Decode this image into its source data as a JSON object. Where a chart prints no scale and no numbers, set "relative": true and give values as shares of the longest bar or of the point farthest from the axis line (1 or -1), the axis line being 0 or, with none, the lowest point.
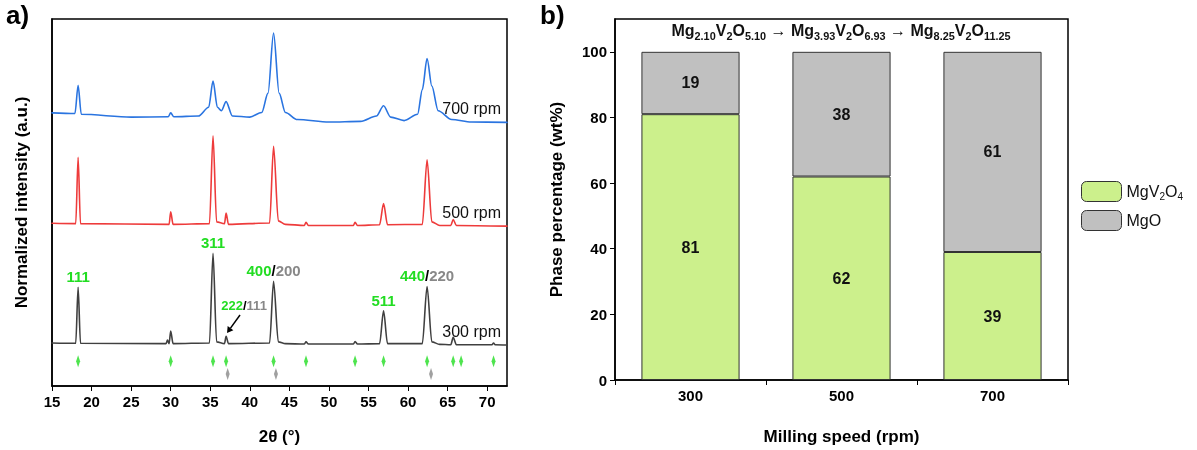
{
  "chart_data": [
    {
      "type": "line",
      "relative": true,
      "xlabel": "2θ (°)",
      "ylabel": "Normalized intensity (a.u.)",
      "xlim": [
        15,
        72.5
      ],
      "xticks": [
        15,
        20,
        25,
        30,
        35,
        40,
        45,
        50,
        55,
        60,
        65,
        70
      ],
      "legend": false,
      "series": [
        {
          "name": "700 rpm",
          "color": "#2a74e0",
          "x": [
            15,
            17.9,
            18.3,
            18.7,
            25,
            29.7,
            30.0,
            30.4,
            33.5,
            34.8,
            35.35,
            35.9,
            36.4,
            37.0,
            37.8,
            40,
            41.5,
            42.3,
            43.0,
            43.7,
            44.5,
            46,
            50,
            54,
            56.0,
            56.9,
            57.8,
            59.5,
            61.2,
            61.8,
            62.4,
            63.0,
            63.8,
            65.5,
            68,
            72.5
          ],
          "values": [
            0.774,
            0.772,
            0.852,
            0.77,
            0.762,
            0.763,
            0.774,
            0.763,
            0.765,
            0.79,
            0.864,
            0.79,
            0.78,
            0.806,
            0.765,
            0.762,
            0.775,
            0.83,
            1.0,
            0.83,
            0.775,
            0.755,
            0.748,
            0.75,
            0.765,
            0.794,
            0.762,
            0.752,
            0.77,
            0.84,
            0.928,
            0.85,
            0.78,
            0.755,
            0.748,
            0.747
          ]
        },
        {
          "name": "500 rpm",
          "color": "#ee3b3b",
          "x": [
            15,
            18.0,
            18.3,
            18.6,
            29.8,
            30.0,
            30.3,
            34.9,
            35.35,
            35.8,
            36.8,
            37.0,
            37.3,
            42.5,
            43.0,
            43.6,
            44.5,
            46.9,
            47.1,
            47.4,
            53.1,
            53.3,
            53.6,
            56.4,
            56.9,
            57.4,
            61.8,
            62.4,
            63.0,
            64.0,
            65.4,
            65.7,
            66.1,
            72.5
          ],
          "values": [
            0.461,
            0.46,
            0.648,
            0.46,
            0.458,
            0.494,
            0.458,
            0.46,
            0.709,
            0.465,
            0.46,
            0.49,
            0.458,
            0.462,
            0.679,
            0.468,
            0.458,
            0.455,
            0.464,
            0.455,
            0.455,
            0.464,
            0.455,
            0.457,
            0.517,
            0.457,
            0.458,
            0.641,
            0.465,
            0.455,
            0.455,
            0.472,
            0.455,
            0.453
          ]
        },
        {
          "name": "300 rpm",
          "color": "#404040",
          "x": [
            15,
            18.0,
            18.3,
            18.6,
            29.4,
            29.6,
            29.8,
            30.0,
            30.3,
            34.9,
            35.35,
            35.8,
            36.8,
            37.0,
            37.3,
            42.5,
            43.0,
            43.6,
            44.5,
            46.9,
            47.1,
            47.4,
            53.1,
            53.3,
            53.6,
            56.4,
            56.9,
            57.4,
            61.8,
            62.4,
            63.0,
            64.0,
            65.4,
            65.7,
            66.1,
            70.6,
            70.8,
            71.0,
            72.5
          ],
          "values": [
            0.122,
            0.121,
            0.28,
            0.121,
            0.12,
            0.13,
            0.12,
            0.156,
            0.12,
            0.122,
            0.376,
            0.125,
            0.12,
            0.141,
            0.12,
            0.122,
            0.297,
            0.125,
            0.12,
            0.119,
            0.125,
            0.119,
            0.119,
            0.126,
            0.119,
            0.12,
            0.213,
            0.12,
            0.12,
            0.282,
            0.125,
            0.118,
            0.117,
            0.138,
            0.117,
            0.117,
            0.122,
            0.117,
            0.116
          ]
        },
        {
          "type": "scatter",
          "marker": "diamond",
          "color": "#22dd22",
          "x": [
            18.3,
            30.0,
            35.35,
            37.0,
            43.0,
            47.1,
            53.3,
            56.9,
            62.4,
            65.7,
            66.7,
            70.8
          ],
          "values": [
            0.07,
            0.07,
            0.07,
            0.07,
            0.07,
            0.07,
            0.07,
            0.07,
            0.07,
            0.07,
            0.07,
            0.07
          ]
        },
        {
          "type": "scatter",
          "marker": "diamond",
          "color": "#888888",
          "x": [
            37.2,
            43.3,
            62.9
          ],
          "values": [
            0.034,
            0.034,
            0.034
          ]
        }
      ],
      "annotations": [
        "a)",
        {
          "text": "111",
          "x": 18.3,
          "y": 0.28
        },
        {
          "text": "311",
          "x": 35.35,
          "y": 0.376
        },
        {
          "text": "222/111",
          "x": 37.0,
          "y": 0.141
        },
        {
          "text": "400/200",
          "x": 43.0,
          "y": 0.297
        },
        {
          "text": "511",
          "x": 56.9,
          "y": 0.213
        },
        {
          "text": "440/220",
          "x": 62.4,
          "y": 0.282
        }
      ]
    },
    {
      "type": "bar",
      "stacked": true,
      "title": "Mg$_{2.10}$V$_{2}$O$_{5.10}$ → Mg$_{3.93}$V$_{2}$O$_{6.93}$ → Mg$_{8.25}$V$_{2}$O$_{11.25}$",
      "xlabel": "Milling speed (rpm)",
      "ylabel": "Phase percentage (wt%)",
      "categories": [
        "300",
        "500",
        "700"
      ],
      "ylim": [
        0,
        110
      ],
      "yticks": [
        0,
        20,
        40,
        60,
        80,
        100
      ],
      "data_labels": true,
      "legend": "right",
      "grid": false,
      "series": [
        {
          "name": "MgV$_{2}$O$_{4}$",
          "color": "#ccf08c",
          "values": [
            81,
            62,
            39
          ]
        },
        {
          "name": "MgO",
          "color": "#c0c0c0",
          "values": [
            19,
            38,
            61
          ]
        }
      ],
      "annotations": [
        "b)"
      ]
    }
  ]
}
